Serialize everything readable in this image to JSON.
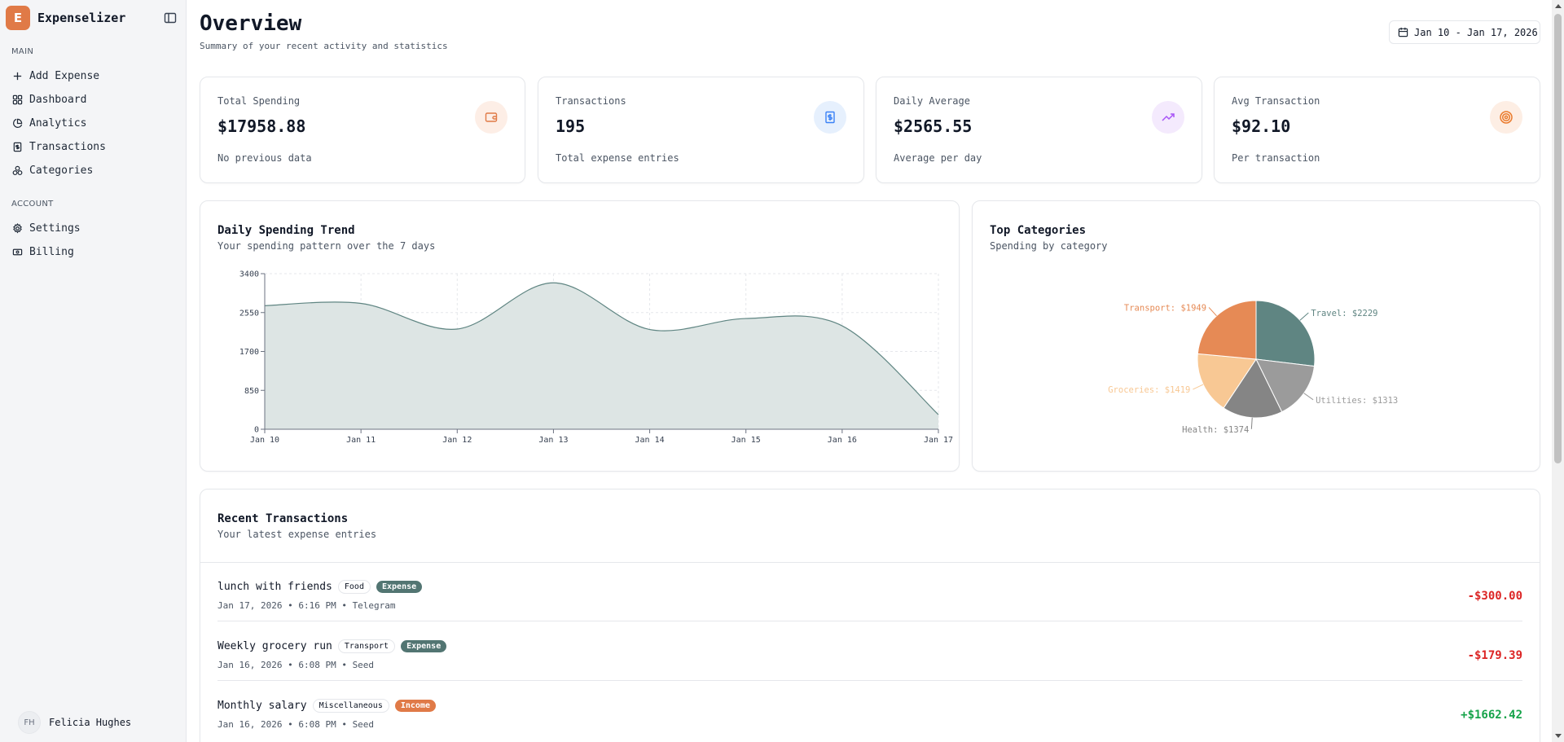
{
  "app": {
    "logo_letter": "E",
    "name": "Expenselizer"
  },
  "sidebar": {
    "sections": [
      {
        "label": "MAIN",
        "items": [
          {
            "label": "Add Expense",
            "icon": "plus-icon"
          },
          {
            "label": "Dashboard",
            "icon": "grid-icon"
          },
          {
            "label": "Analytics",
            "icon": "pie-chart-icon"
          },
          {
            "label": "Transactions",
            "icon": "receipt-icon"
          },
          {
            "label": "Categories",
            "icon": "shapes-icon"
          }
        ]
      },
      {
        "label": "ACCOUNT",
        "items": [
          {
            "label": "Settings",
            "icon": "gear-icon"
          },
          {
            "label": "Billing",
            "icon": "banknote-icon"
          }
        ]
      }
    ],
    "user": {
      "initials": "FH",
      "name": "Felicia Hughes"
    }
  },
  "header": {
    "title": "Overview",
    "subtitle": "Summary of your recent activity and statistics",
    "date_range": "Jan 10 - Jan 17, 2026"
  },
  "stats": [
    {
      "label": "Total Spending",
      "value": "$17958.88",
      "note": "No previous data",
      "icon": "wallet-icon",
      "icon_color": "#e07a47",
      "icon_bg": "#fdeee6"
    },
    {
      "label": "Transactions",
      "value": "195",
      "note": "Total expense entries",
      "icon": "receipt-icon",
      "icon_color": "#3b82f6",
      "icon_bg": "#e6f0fd"
    },
    {
      "label": "Daily Average",
      "value": "$2565.55",
      "note": "Average per day",
      "icon": "trending-up-icon",
      "icon_color": "#a855f7",
      "icon_bg": "#f4eafd"
    },
    {
      "label": "Avg Transaction",
      "value": "$92.10",
      "note": "Per transaction",
      "icon": "target-icon",
      "icon_color": "#ea7a2b",
      "icon_bg": "#fdeee4"
    }
  ],
  "trend": {
    "title": "Daily Spending Trend",
    "subtitle": "Your spending pattern over the 7 days"
  },
  "categories_card": {
    "title": "Top Categories",
    "subtitle": "Spending by category"
  },
  "chart_data": [
    {
      "type": "area",
      "title": "Daily Spending Trend",
      "x": [
        "Jan 10",
        "Jan 11",
        "Jan 12",
        "Jan 13",
        "Jan 14",
        "Jan 15",
        "Jan 16",
        "Jan 17"
      ],
      "values": [
        2700,
        2750,
        2190,
        3200,
        2180,
        2420,
        2260,
        320
      ],
      "yticks": [
        0,
        850,
        1700,
        2550,
        3400
      ],
      "ylim": [
        0,
        3400
      ],
      "grid": true,
      "color": "#5f8582",
      "fill": "#dde5e4"
    },
    {
      "type": "pie",
      "title": "Top Categories",
      "slices": [
        {
          "name": "Travel",
          "value": 2229,
          "label": "Travel: $2229",
          "color": "#5f8582"
        },
        {
          "name": "Utilities",
          "value": 1313,
          "label": "Utilities: $1313",
          "color": "#9b9b9b"
        },
        {
          "name": "Health",
          "value": 1374,
          "label": "Health: $1374",
          "color": "#858585"
        },
        {
          "name": "Groceries",
          "value": 1419,
          "label": "Groceries: $1419",
          "color": "#f8c894"
        },
        {
          "name": "Transport",
          "value": 1949,
          "label": "Transport: $1949",
          "color": "#e68a55"
        }
      ]
    }
  ],
  "transactions": {
    "title": "Recent Transactions",
    "subtitle": "Your latest expense entries",
    "rows": [
      {
        "name": "lunch with friends",
        "category": "Food",
        "type": "Expense",
        "type_color": "#527572",
        "meta": "Jan 17, 2026 • 6:16 PM • Telegram",
        "amount": "-$300.00",
        "amount_color": "#dc2626"
      },
      {
        "name": "Weekly grocery run",
        "category": "Transport",
        "type": "Expense",
        "type_color": "#527572",
        "meta": "Jan 16, 2026 • 6:08 PM • Seed",
        "amount": "-$179.39",
        "amount_color": "#dc2626"
      },
      {
        "name": "Monthly salary",
        "category": "Miscellaneous",
        "type": "Income",
        "type_color": "#e07a47",
        "meta": "Jan 16, 2026 • 6:08 PM • Seed",
        "amount": "+$1662.42",
        "amount_color": "#16a34a"
      }
    ]
  }
}
